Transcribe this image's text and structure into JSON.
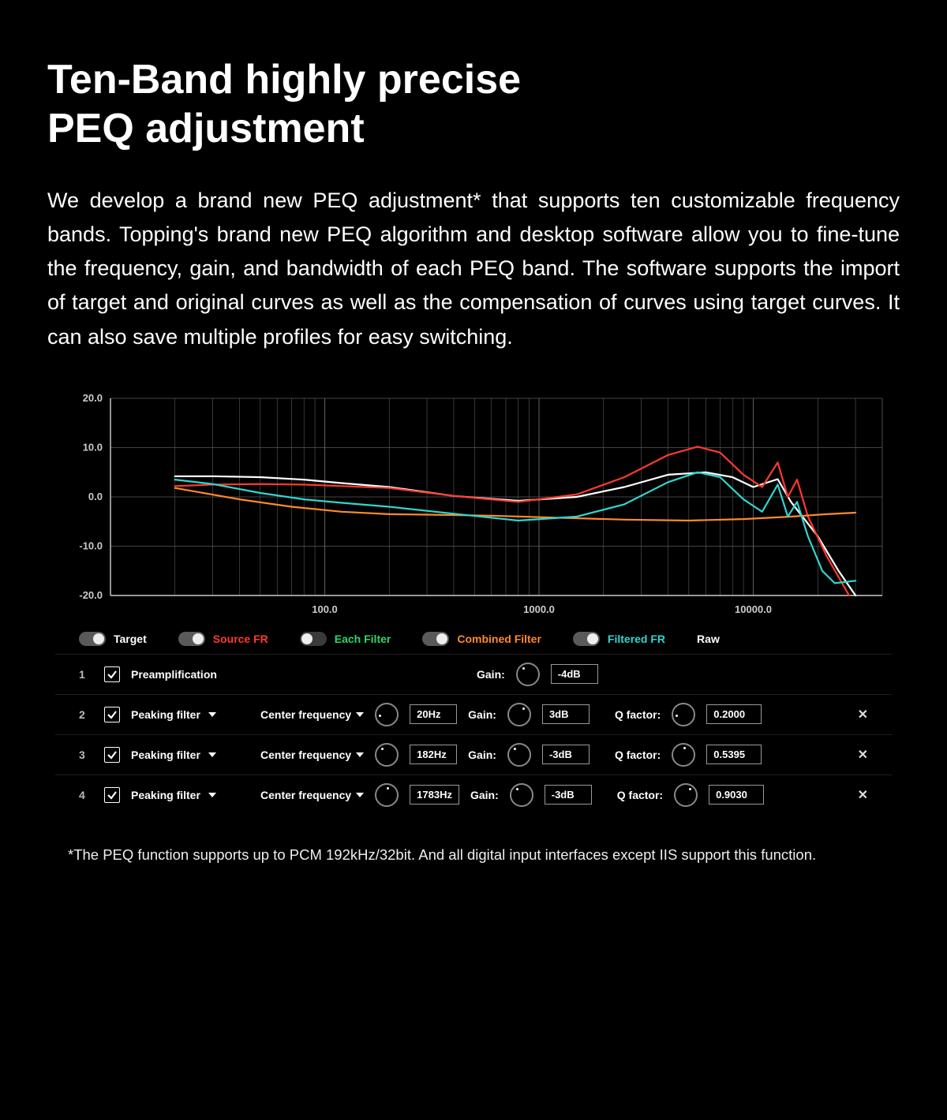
{
  "title": "Ten-Band highly precise\nPEQ adjustment",
  "description": "We develop a brand new PEQ adjustment* that supports ten customizable frequency bands. Topping's brand new PEQ algorithm and desktop software allow you to fine-tune the frequency, gain, and bandwidth of each PEQ band. The software supports the import of target and original curves as well as the compensation of curves using target curves. It can also save multiple profiles for easy switching.",
  "footnote": "*The PEQ function supports up to PCM 192kHz/32bit. And all digital input interfaces except IIS support this function.",
  "colors": {
    "target_white": "#ffffff",
    "source_red": "#ff3a2f",
    "each_filter_green": "#2fd56b",
    "combined_orange": "#ff8a2a",
    "filtered_cyan": "#2fd6d0",
    "raw_text": "#ffffff",
    "axis": "#cccccc",
    "grid": "#5a5a5a",
    "bg": "#000000"
  },
  "chart": {
    "type": "line",
    "x_scale": "log",
    "y_label_ticks": [
      "20.0",
      "10.0",
      "0.0",
      "-10.0",
      "-20.0"
    ],
    "y_values": [
      20,
      10,
      0,
      -10,
      -20
    ],
    "x_label_ticks": [
      "100.0",
      "1000.0",
      "10000.0"
    ],
    "x_decades": [
      10,
      100,
      1000,
      10000,
      40000
    ],
    "ylim": [
      -20,
      20
    ],
    "line_width": 2.2,
    "series": [
      {
        "name": "Target",
        "color_key": "target_white",
        "points": [
          [
            20,
            4.2
          ],
          [
            30,
            4.2
          ],
          [
            50,
            4.0
          ],
          [
            80,
            3.5
          ],
          [
            120,
            2.8
          ],
          [
            200,
            2.0
          ],
          [
            400,
            0.2
          ],
          [
            800,
            -0.8
          ],
          [
            1500,
            0.0
          ],
          [
            2500,
            2.0
          ],
          [
            4000,
            4.5
          ],
          [
            6000,
            5.0
          ],
          [
            8000,
            4.0
          ],
          [
            10000,
            2.0
          ],
          [
            13000,
            3.6
          ],
          [
            15000,
            -1.0
          ],
          [
            20000,
            -8.0
          ],
          [
            25000,
            -15.0
          ],
          [
            30000,
            -20.0
          ]
        ]
      },
      {
        "name": "Source FR",
        "color_key": "source_red",
        "points": [
          [
            20,
            2.2
          ],
          [
            30,
            2.5
          ],
          [
            50,
            2.6
          ],
          [
            80,
            2.5
          ],
          [
            120,
            2.2
          ],
          [
            200,
            1.8
          ],
          [
            400,
            0.2
          ],
          [
            800,
            -1.0
          ],
          [
            1500,
            0.5
          ],
          [
            2500,
            4.0
          ],
          [
            4000,
            8.5
          ],
          [
            5500,
            10.2
          ],
          [
            7000,
            9.0
          ],
          [
            9000,
            4.5
          ],
          [
            11000,
            2.0
          ],
          [
            13000,
            7.0
          ],
          [
            14500,
            0.0
          ],
          [
            16000,
            3.5
          ],
          [
            18000,
            -4.0
          ],
          [
            22000,
            -12.0
          ],
          [
            28000,
            -20.0
          ]
        ]
      },
      {
        "name": "Combined Filter",
        "color_key": "combined_orange",
        "points": [
          [
            20,
            1.8
          ],
          [
            40,
            -0.5
          ],
          [
            70,
            -2.0
          ],
          [
            120,
            -3.0
          ],
          [
            200,
            -3.5
          ],
          [
            300,
            -3.6
          ],
          [
            600,
            -3.8
          ],
          [
            1200,
            -4.2
          ],
          [
            2500,
            -4.6
          ],
          [
            5000,
            -4.8
          ],
          [
            9000,
            -4.5
          ],
          [
            15000,
            -4.0
          ],
          [
            22000,
            -3.5
          ],
          [
            30000,
            -3.2
          ]
        ]
      },
      {
        "name": "Filtered FR",
        "color_key": "filtered_cyan",
        "points": [
          [
            20,
            3.5
          ],
          [
            30,
            2.6
          ],
          [
            50,
            0.8
          ],
          [
            80,
            -0.5
          ],
          [
            120,
            -1.2
          ],
          [
            200,
            -2.0
          ],
          [
            400,
            -3.4
          ],
          [
            800,
            -4.8
          ],
          [
            1500,
            -4.0
          ],
          [
            2500,
            -1.5
          ],
          [
            4000,
            3.0
          ],
          [
            5500,
            5.0
          ],
          [
            7000,
            4.0
          ],
          [
            9000,
            -0.5
          ],
          [
            11000,
            -3.0
          ],
          [
            13000,
            2.5
          ],
          [
            14500,
            -4.0
          ],
          [
            16000,
            -1.0
          ],
          [
            18000,
            -8.0
          ],
          [
            21000,
            -15.0
          ],
          [
            24000,
            -17.5
          ],
          [
            30000,
            -17.0
          ]
        ]
      }
    ]
  },
  "legend": [
    {
      "label": "Target",
      "color_key": "target_white",
      "on": true
    },
    {
      "label": "Source FR",
      "color_key": "source_red",
      "on": true
    },
    {
      "label": "Each Filter",
      "color_key": "each_filter_green",
      "on": false
    },
    {
      "label": "Combined Filter",
      "color_key": "combined_orange",
      "on": true
    },
    {
      "label": "Filtered FR",
      "color_key": "filtered_cyan",
      "on": true
    },
    {
      "label": "Raw",
      "color_key": "raw_text",
      "on": null
    }
  ],
  "labels": {
    "center_freq": "Center frequency",
    "gain": "Gain:",
    "q_factor": "Q factor:"
  },
  "rows": [
    {
      "num": "1",
      "checked": true,
      "type": "Preamplification",
      "has_type_caret": false,
      "has_freq": false,
      "gain": "-4dB",
      "gain_knob": "p-tl",
      "q": null
    },
    {
      "num": "2",
      "checked": true,
      "type": "Peaking filter",
      "has_type_caret": true,
      "has_freq": true,
      "freq": "20Hz",
      "freq_knob": "p-l",
      "gain": "3dB",
      "gain_knob": "p-tr",
      "q": "0.2000",
      "q_knob": "p-l"
    },
    {
      "num": "3",
      "checked": true,
      "type": "Peaking filter",
      "has_type_caret": true,
      "has_freq": true,
      "freq": "182Hz",
      "freq_knob": "p-tl",
      "gain": "-3dB",
      "gain_knob": "p-tl",
      "q": "0.5395",
      "q_knob": "p-t"
    },
    {
      "num": "4",
      "checked": true,
      "type": "Peaking filter",
      "has_type_caret": true,
      "has_freq": true,
      "freq": "1783Hz",
      "freq_knob": "p-t",
      "gain": "-3dB",
      "gain_knob": "p-tl",
      "q": "0.9030",
      "q_knob": "p-tr"
    }
  ]
}
